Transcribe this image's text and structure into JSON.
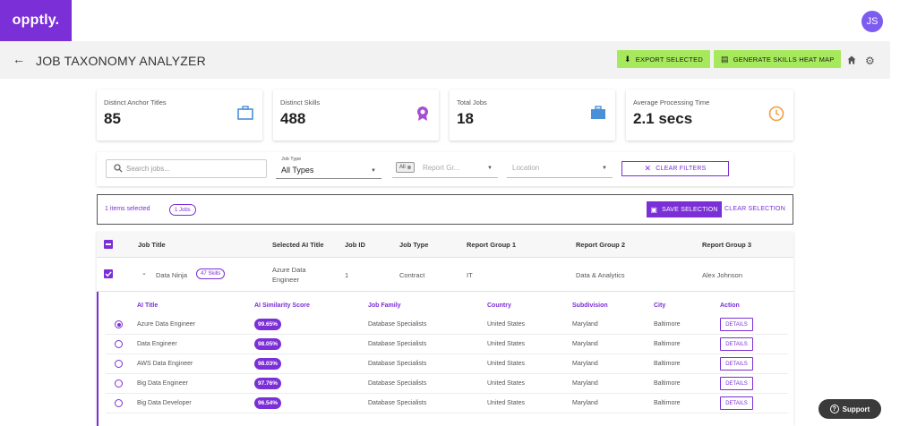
{
  "app": {
    "logo": "opptly.",
    "avatar_initials": "JS"
  },
  "header": {
    "back_icon": "arrow-left-icon",
    "title": "JOB TAXONOMY ANALYZER",
    "export_label": "EXPORT SELECTED",
    "heatmap_label": "GENERATE SKILLS HEAT MAP"
  },
  "stats": [
    {
      "label": "Distinct Anchor Titles",
      "value": "85",
      "icon": "briefcase-outline-icon",
      "color": "#4a90d9"
    },
    {
      "label": "Distinct Skills",
      "value": "488",
      "icon": "award-icon",
      "color": "#a64ed1"
    },
    {
      "label": "Total Jobs",
      "value": "18",
      "icon": "briefcase-icon",
      "color": "#4a90d9"
    },
    {
      "label": "Average Processing Time",
      "value": "2.1 secs",
      "icon": "clock-icon",
      "color": "#f0a040"
    }
  ],
  "filters": {
    "search_placeholder": "Search jobs...",
    "job_type_label": "Job Type",
    "job_type_value": "All Types",
    "report_chip": "All",
    "report_placeholder": "Report Gr...",
    "location_placeholder": "Location",
    "clear_label": "CLEAR FILTERS"
  },
  "selection": {
    "text": "1 items selected",
    "pill": "1 Jobs",
    "save_label": "SAVE SELECTION",
    "clear_label": "CLEAR SELECTION"
  },
  "table": {
    "headers": [
      "Job Title",
      "Selected AI Title",
      "Job ID",
      "Job Type",
      "Report Group 1",
      "Report Group 2",
      "Report Group 3"
    ],
    "row": {
      "title": "Data Ninja",
      "skills": "47 Skills",
      "ai_title_1": "Azure Data",
      "ai_title_2": "Engineer",
      "job_id": "1",
      "job_type": "Contract",
      "rg1": "IT",
      "rg2": "Data & Analytics",
      "rg3": "Alex Johnson"
    },
    "sub_headers": [
      "AI Title",
      "AI Similarity Score",
      "Job Family",
      "Country",
      "Subdivision",
      "City",
      "Action"
    ],
    "sub_rows": [
      {
        "title": "Azure Data Engineer",
        "score": "99.65%",
        "family": "Database Specialists",
        "country": "United States",
        "subdivision": "Maryland",
        "city": "Baltimore",
        "action": "DETAILS"
      },
      {
        "title": "Data Engineer",
        "score": "98.05%",
        "family": "Database Specialists",
        "country": "United States",
        "subdivision": "Maryland",
        "city": "Baltimore",
        "action": "DETAILS"
      },
      {
        "title": "AWS Data Engineer",
        "score": "98.03%",
        "family": "Database Specialists",
        "country": "United States",
        "subdivision": "Maryland",
        "city": "Baltimore",
        "action": "DETAILS"
      },
      {
        "title": "Big Data Engineer",
        "score": "97.76%",
        "family": "Database Specialists",
        "country": "United States",
        "subdivision": "Maryland",
        "city": "Baltimore",
        "action": "DETAILS"
      },
      {
        "title": "Big Data Developer",
        "score": "96.54%",
        "family": "Database Specialists",
        "country": "United States",
        "subdivision": "Maryland",
        "city": "Baltimore",
        "action": "DETAILS"
      }
    ]
  },
  "support_label": "Support"
}
